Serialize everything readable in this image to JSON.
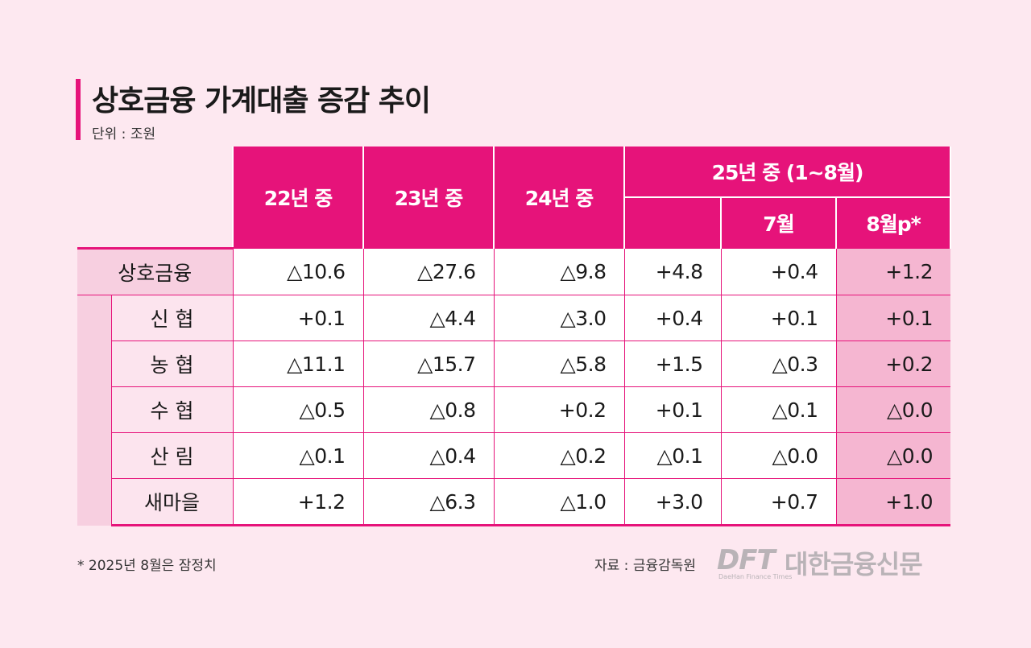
{
  "title": "상호금융 가계대출 증감 추이",
  "unit": "단위 : 조원",
  "table": {
    "columns": [
      "22년 중",
      "23년 중",
      "24년 중"
    ],
    "group_header": "25년 중 (1~8월)",
    "sub_columns": [
      "7월",
      "8월p*"
    ],
    "rows": [
      {
        "label": "상호금융",
        "values": [
          "△10.6",
          "△27.6",
          "△9.8",
          "+4.8",
          "+0.4",
          "+1.2"
        ]
      },
      {
        "label": "신 협",
        "values": [
          "+0.1",
          "△4.4",
          "△3.0",
          "+0.4",
          "+0.1",
          "+0.1"
        ]
      },
      {
        "label": "농 협",
        "values": [
          "△11.1",
          "△15.7",
          "△5.8",
          "+1.5",
          "△0.3",
          "+0.2"
        ]
      },
      {
        "label": "수 협",
        "values": [
          "△0.5",
          "△0.8",
          "+0.2",
          "+0.1",
          "△0.1",
          "△0.0"
        ]
      },
      {
        "label": "산 림",
        "values": [
          "△0.1",
          "△0.4",
          "△0.2",
          "△0.1",
          "△0.0",
          "△0.0"
        ]
      },
      {
        "label": "새마을",
        "values": [
          "+1.2",
          "△6.3",
          "△1.0",
          "+3.0",
          "+0.7",
          "+1.0"
        ]
      }
    ]
  },
  "footnote": "* 2025년 8월은 잠정치",
  "source": "자료 : 금융감독원",
  "logo": {
    "mark": "DFT",
    "name": "대한금융신문",
    "subtitle": "DaeHan Finance Times"
  },
  "colors": {
    "accent": "#e6137a",
    "background": "#fde8f0",
    "label_fill": "#f7cfe0",
    "highlight_column": "#f5b6d1"
  }
}
